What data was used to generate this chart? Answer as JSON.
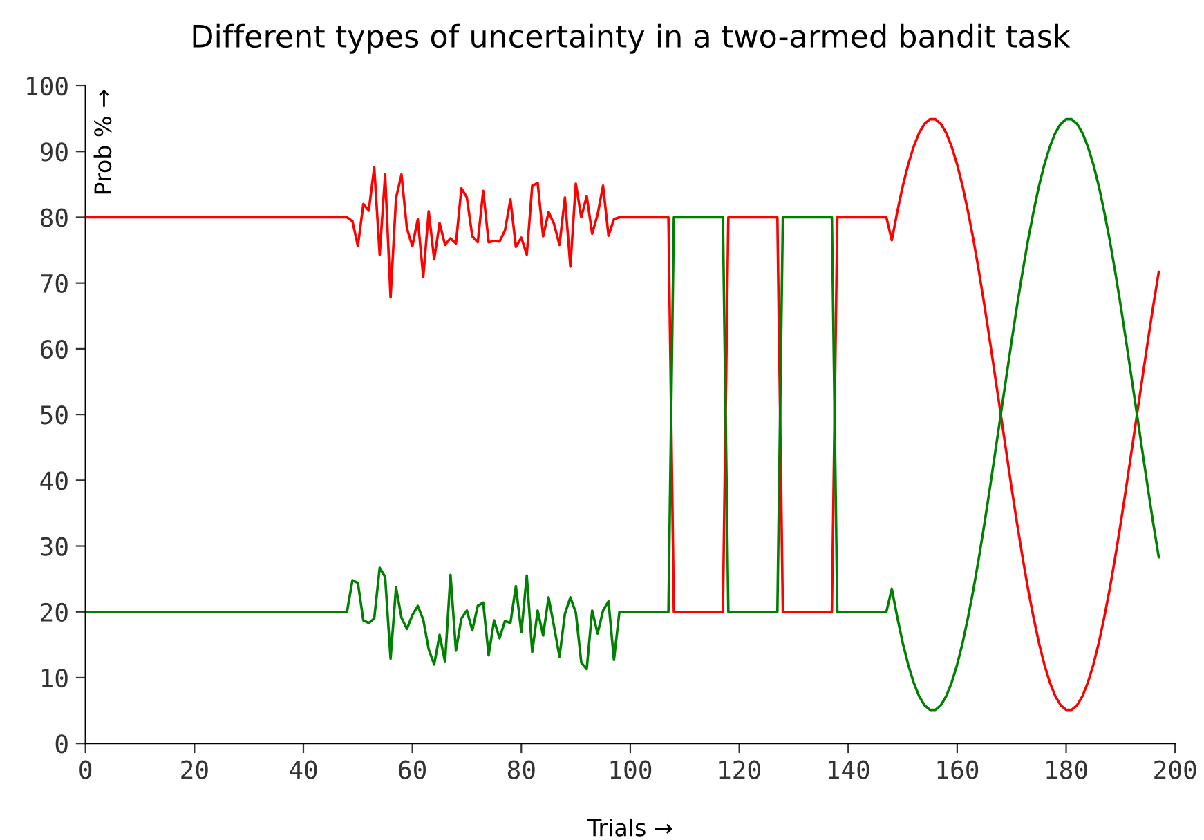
{
  "chart_data": {
    "type": "line",
    "title": "Different types of uncertainty in a two-armed bandit task",
    "xlabel": "Trials →",
    "ylabel": "Prob % →",
    "xlim": [
      0,
      200
    ],
    "xticks": [
      0,
      20,
      40,
      60,
      80,
      100,
      120,
      140,
      160,
      180,
      200
    ],
    "ylim": [
      0,
      100
    ],
    "yticks": [
      0,
      10,
      20,
      30,
      40,
      50,
      60,
      70,
      80,
      90,
      100
    ],
    "grid": false,
    "marker": "none",
    "line_style": "solid",
    "series": [
      {
        "color": "#ff0000",
        "x": [
          0,
          48,
          49,
          50,
          51,
          52,
          53,
          54,
          55,
          56,
          57,
          58,
          59,
          60,
          61,
          62,
          63,
          64,
          65,
          66,
          67,
          68,
          69,
          70,
          71,
          72,
          73,
          74,
          75,
          76,
          77,
          78,
          79,
          80,
          81,
          82,
          83,
          84,
          85,
          86,
          87,
          88,
          89,
          90,
          91,
          92,
          93,
          94,
          95,
          96,
          97,
          98,
          107,
          108,
          117,
          118,
          127,
          128,
          137,
          138,
          147,
          148,
          149,
          150,
          151,
          152,
          153,
          154,
          155,
          156,
          157,
          158,
          159,
          160,
          161,
          162,
          163,
          164,
          165,
          166,
          167,
          168,
          169,
          170,
          171,
          172,
          173,
          174,
          175,
          176,
          177,
          178,
          179,
          180,
          181,
          182,
          183,
          184,
          185,
          186,
          187,
          188,
          189,
          190,
          191,
          192,
          193,
          194,
          195,
          196,
          197
        ],
        "values": [
          80,
          80,
          79.4,
          75.6,
          82,
          81,
          87.6,
          74.3,
          86.5,
          67.8,
          82.9,
          86.5,
          78.3,
          75.6,
          79.7,
          70.9,
          80.9,
          73.6,
          79.1,
          75.8,
          76.8,
          76,
          84.4,
          83,
          77.1,
          76.2,
          84,
          76.2,
          76.4,
          76.3,
          78,
          82.7,
          75.5,
          76.9,
          74.3,
          84.8,
          85.2,
          77.1,
          80.8,
          79,
          75.8,
          83,
          72.5,
          85.1,
          80,
          83.2,
          77.5,
          80.4,
          84.8,
          77.2,
          79.7,
          80,
          80,
          20,
          20,
          80,
          80,
          20,
          20,
          80,
          80,
          76.5,
          80.8,
          84.7,
          88.0,
          90.7,
          92.8,
          94.2,
          94.9,
          94.9,
          94.2,
          92.8,
          90.7,
          88.0,
          84.7,
          80.8,
          76.5,
          71.7,
          66.6,
          61.2,
          55.6,
          50,
          44.4,
          38.8,
          33.4,
          28.3,
          23.5,
          19.2,
          15.3,
          12.0,
          9.3,
          7.2,
          5.8,
          5.1,
          5.1,
          5.8,
          7.2,
          9.3,
          12.0,
          15.3,
          19.2,
          23.5,
          28.3,
          33.4,
          38.8,
          44.4,
          50,
          55.6,
          61.2,
          66.6,
          71.7
        ]
      },
      {
        "color": "#008000",
        "x": [
          0,
          48,
          49,
          50,
          51,
          52,
          53,
          54,
          55,
          56,
          57,
          58,
          59,
          60,
          61,
          62,
          63,
          64,
          65,
          66,
          67,
          68,
          69,
          70,
          71,
          72,
          73,
          74,
          75,
          76,
          77,
          78,
          79,
          80,
          81,
          82,
          83,
          84,
          85,
          86,
          87,
          88,
          89,
          90,
          91,
          92,
          93,
          94,
          95,
          96,
          97,
          98,
          107,
          108,
          117,
          118,
          127,
          128,
          137,
          138,
          147,
          148,
          149,
          150,
          151,
          152,
          153,
          154,
          155,
          156,
          157,
          158,
          159,
          160,
          161,
          162,
          163,
          164,
          165,
          166,
          167,
          168,
          169,
          170,
          171,
          172,
          173,
          174,
          175,
          176,
          177,
          178,
          179,
          180,
          181,
          182,
          183,
          184,
          185,
          186,
          187,
          188,
          189,
          190,
          191,
          192,
          193,
          194,
          195,
          196,
          197
        ],
        "values": [
          20,
          20,
          24.8,
          24.4,
          18.7,
          18.3,
          19,
          26.7,
          25.3,
          12.9,
          23.7,
          19.1,
          17.4,
          19.5,
          20.9,
          18.8,
          14.3,
          12,
          16.5,
          12.4,
          25.6,
          14.1,
          19,
          20.2,
          17.2,
          20.9,
          21.4,
          13.4,
          18.7,
          16,
          18.6,
          18.3,
          23.9,
          16.9,
          25.5,
          13.9,
          20.2,
          16.4,
          22.2,
          17.8,
          13.2,
          19.7,
          22.2,
          19.9,
          12.3,
          11.3,
          20.2,
          16.7,
          20.2,
          21.6,
          12.7,
          20,
          20,
          80,
          80,
          20,
          20,
          80,
          80,
          20,
          20,
          23.5,
          19.2,
          15.3,
          12.0,
          9.3,
          7.2,
          5.8,
          5.1,
          5.1,
          5.8,
          7.2,
          9.3,
          12.0,
          15.3,
          19.2,
          23.5,
          28.3,
          33.4,
          38.8,
          44.4,
          50,
          55.6,
          61.2,
          66.6,
          71.7,
          76.5,
          80.8,
          84.7,
          88.0,
          90.7,
          92.8,
          94.2,
          94.9,
          94.9,
          94.2,
          92.8,
          90.7,
          88.0,
          84.7,
          80.8,
          76.5,
          71.7,
          66.6,
          61.2,
          55.6,
          50,
          44.4,
          38.8,
          33.4,
          28.3
        ]
      }
    ]
  }
}
